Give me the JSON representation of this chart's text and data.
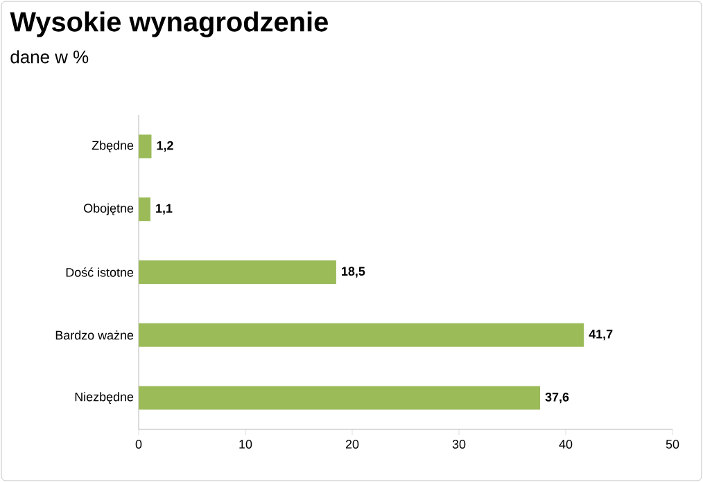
{
  "chart_data": {
    "type": "bar",
    "orientation": "horizontal",
    "title": "Wysokie wynagrodzenie",
    "subtitle": "dane w %",
    "categories": [
      "Zbędne",
      "Obojętne",
      "Dość istotne",
      "Bardzo ważne",
      "Niezbędne"
    ],
    "values": [
      1.2,
      1.1,
      18.5,
      41.7,
      37.6
    ],
    "value_labels": [
      "1,2",
      "1,1",
      "18,5",
      "41,7",
      "37,6"
    ],
    "color": "#9bbb59",
    "xlim": [
      0,
      50
    ],
    "xticks": [
      0,
      10,
      20,
      30,
      40,
      50
    ],
    "grid": false
  }
}
